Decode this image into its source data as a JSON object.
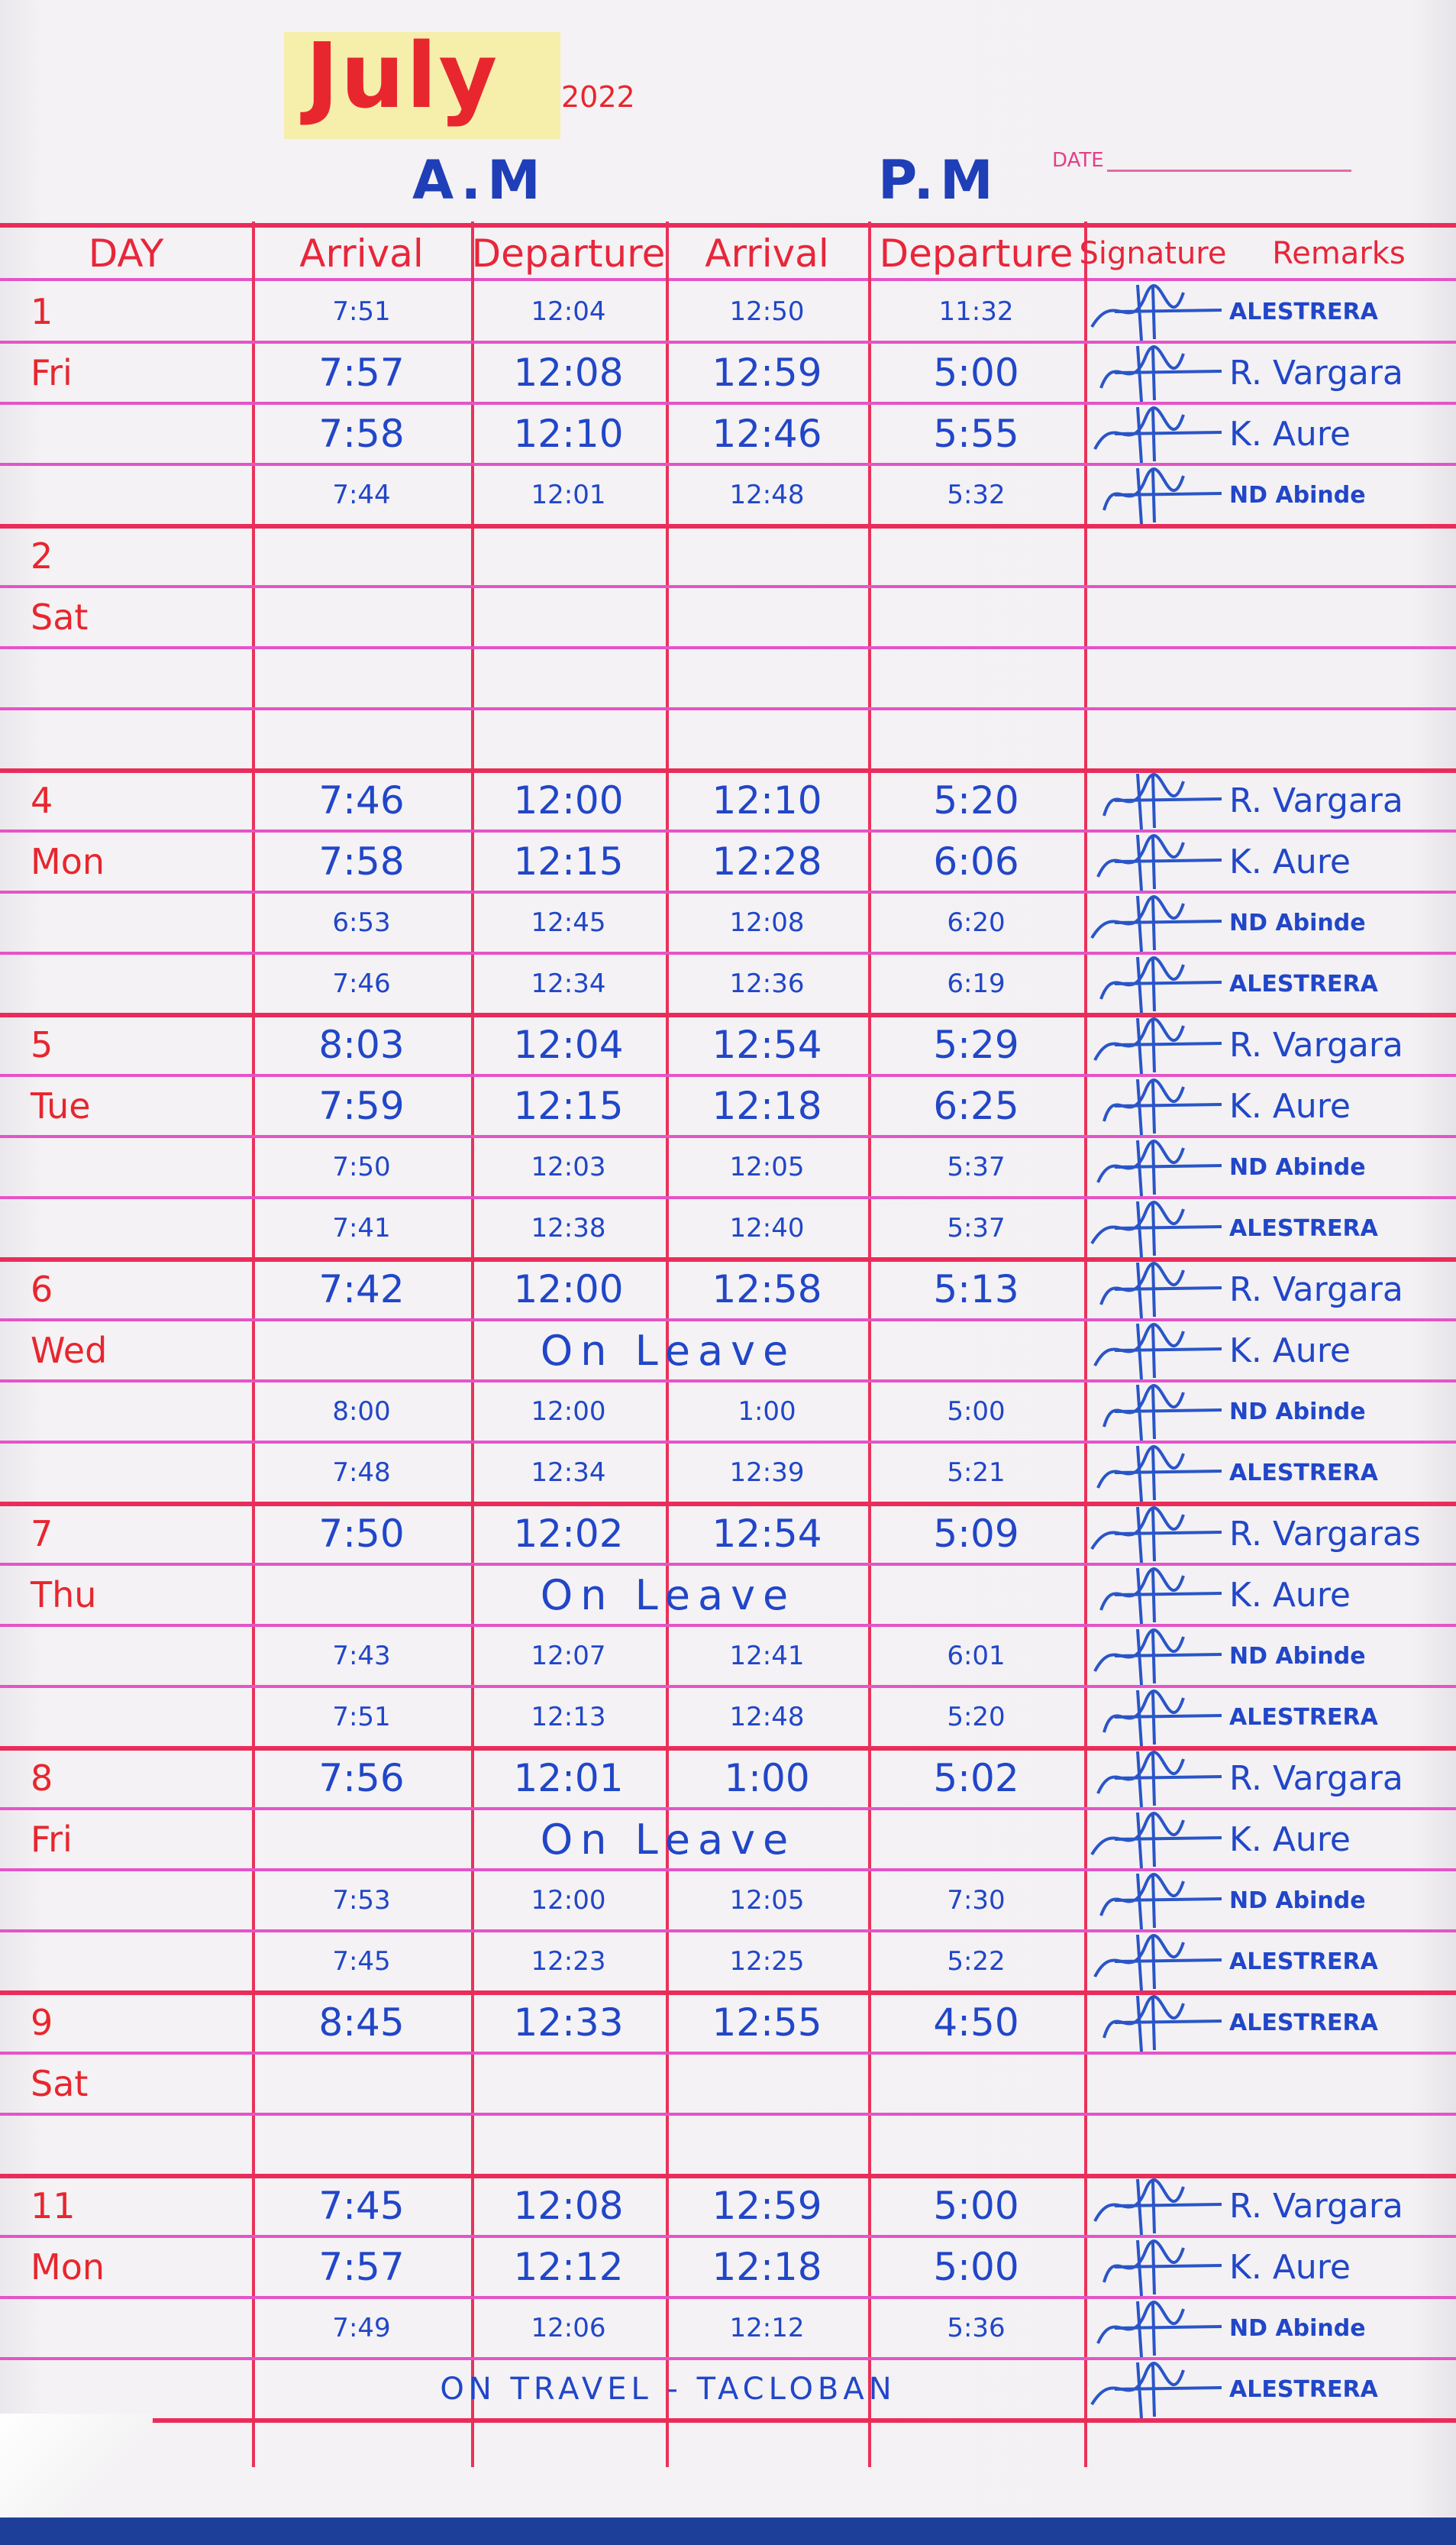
{
  "header": {
    "month": "July",
    "year": "2022",
    "am_label": "A.M",
    "pm_label": "P.M",
    "date_label": "DATE"
  },
  "columns": [
    "DAY",
    "Arrival",
    "Departure",
    "Arrival",
    "Departure",
    "Signature",
    "Remarks"
  ],
  "colors": {
    "ink": "#2146c8",
    "red_ink": "#e8262e",
    "row_lines": "#e454c8",
    "column_lines": "#e9325a",
    "highlight": "#f6eeab"
  },
  "days": [
    {
      "day": "1",
      "weekday": "Fri",
      "rows": [
        {
          "am_arrival": "7:51",
          "am_departure": "12:04",
          "pm_arrival": "12:50",
          "pm_departure": "11:32",
          "remarks": "ALESTRERA",
          "signed": true
        },
        {
          "am_arrival": "7:57",
          "am_departure": "12:08",
          "pm_arrival": "12:59",
          "pm_departure": "5:00",
          "remarks": "R. Vargara",
          "signed": true
        },
        {
          "am_arrival": "7:58",
          "am_departure": "12:10",
          "pm_arrival": "12:46",
          "pm_departure": "5:55",
          "remarks": "K. Aure",
          "signed": true
        },
        {
          "am_arrival": "7:44",
          "am_departure": "12:01",
          "pm_arrival": "12:48",
          "pm_departure": "5:32",
          "remarks": "ND Abinde",
          "signed": true
        }
      ]
    },
    {
      "day": "2",
      "weekday": "Sat",
      "rows": [
        {},
        {},
        {},
        {}
      ]
    },
    {
      "day": "4",
      "weekday": "Mon",
      "rows": [
        {
          "am_arrival": "7:46",
          "am_departure": "12:00",
          "pm_arrival": "12:10",
          "pm_departure": "5:20",
          "remarks": "R. Vargara",
          "signed": true
        },
        {
          "am_arrival": "7:58",
          "am_departure": "12:15",
          "pm_arrival": "12:28",
          "pm_departure": "6:06",
          "remarks": "K. Aure",
          "signed": true
        },
        {
          "am_arrival": "6:53",
          "am_departure": "12:45",
          "pm_arrival": "12:08",
          "pm_departure": "6:20",
          "remarks": "ND Abinde",
          "signed": true
        },
        {
          "am_arrival": "7:46",
          "am_departure": "12:34",
          "pm_arrival": "12:36",
          "pm_departure": "6:19",
          "remarks": "ALESTRERA",
          "signed": true
        }
      ]
    },
    {
      "day": "5",
      "weekday": "Tue",
      "rows": [
        {
          "am_arrival": "8:03",
          "am_departure": "12:04",
          "pm_arrival": "12:54",
          "pm_departure": "5:29",
          "remarks": "R. Vargara",
          "signed": true
        },
        {
          "am_arrival": "7:59",
          "am_departure": "12:15",
          "pm_arrival": "12:18",
          "pm_departure": "6:25",
          "remarks": "K. Aure",
          "signed": true
        },
        {
          "am_arrival": "7:50",
          "am_departure": "12:03",
          "pm_arrival": "12:05",
          "pm_departure": "5:37",
          "remarks": "ND Abinde",
          "signed": true
        },
        {
          "am_arrival": "7:41",
          "am_departure": "12:38",
          "pm_arrival": "12:40",
          "pm_departure": "5:37",
          "remarks": "ALESTRERA",
          "signed": true
        }
      ]
    },
    {
      "day": "6",
      "weekday": "Wed",
      "rows": [
        {
          "am_arrival": "7:42",
          "am_departure": "12:00",
          "pm_arrival": "12:58",
          "pm_departure": "5:13",
          "remarks": "R. Vargara",
          "signed": true
        },
        {
          "note": "On Leave",
          "remarks": "K. Aure",
          "signed": true
        },
        {
          "am_arrival": "8:00",
          "am_departure": "12:00",
          "pm_arrival": "1:00",
          "pm_departure": "5:00",
          "remarks": "ND Abinde",
          "signed": true
        },
        {
          "am_arrival": "7:48",
          "am_departure": "12:34",
          "pm_arrival": "12:39",
          "pm_departure": "5:21",
          "remarks": "ALESTRERA",
          "signed": true
        }
      ]
    },
    {
      "day": "7",
      "weekday": "Thu",
      "rows": [
        {
          "am_arrival": "7:50",
          "am_departure": "12:02",
          "pm_arrival": "12:54",
          "pm_departure": "5:09",
          "remarks": "R. Vargaras",
          "signed": true
        },
        {
          "note": "On Leave",
          "remarks": "K. Aure",
          "signed": true
        },
        {
          "am_arrival": "7:43",
          "am_departure": "12:07",
          "pm_arrival": "12:41",
          "pm_departure": "6:01",
          "remarks": "ND Abinde",
          "signed": true
        },
        {
          "am_arrival": "7:51",
          "am_departure": "12:13",
          "pm_arrival": "12:48",
          "pm_departure": "5:20",
          "remarks": "ALESTRERA",
          "signed": true
        }
      ]
    },
    {
      "day": "8",
      "weekday": "Fri",
      "rows": [
        {
          "am_arrival": "7:56",
          "am_departure": "12:01",
          "pm_arrival": "1:00",
          "pm_departure": "5:02",
          "remarks": "R. Vargara",
          "signed": true
        },
        {
          "note": "On Leave",
          "remarks": "K. Aure",
          "signed": true
        },
        {
          "am_arrival": "7:53",
          "am_departure": "12:00",
          "pm_arrival": "12:05",
          "pm_departure": "7:30",
          "remarks": "ND Abinde",
          "signed": true
        },
        {
          "am_arrival": "7:45",
          "am_departure": "12:23",
          "pm_arrival": "12:25",
          "pm_departure": "5:22",
          "remarks": "ALESTRERA",
          "signed": true
        }
      ]
    },
    {
      "day": "9",
      "weekday": "Sat",
      "rows": [
        {
          "am_arrival": "8:45",
          "am_departure": "12:33",
          "pm_arrival": "12:55",
          "pm_departure": "4:50",
          "remarks": "ALESTRERA",
          "signed": true
        },
        {},
        {}
      ]
    },
    {
      "day": "11",
      "weekday": "Mon",
      "rows": [
        {
          "am_arrival": "7:45",
          "am_departure": "12:08",
          "pm_arrival": "12:59",
          "pm_departure": "5:00",
          "remarks": "R. Vargara",
          "signed": true
        },
        {
          "am_arrival": "7:57",
          "am_departure": "12:12",
          "pm_arrival": "12:18",
          "pm_departure": "5:00",
          "remarks": "K. Aure",
          "signed": true
        },
        {
          "am_arrival": "7:49",
          "am_departure": "12:06",
          "pm_arrival": "12:12",
          "pm_departure": "5:36",
          "remarks": "ND Abinde",
          "signed": true
        },
        {
          "note": "ON TRAVEL - TACLOBAN",
          "remarks": "ALESTRERA",
          "signed": true
        }
      ]
    }
  ]
}
